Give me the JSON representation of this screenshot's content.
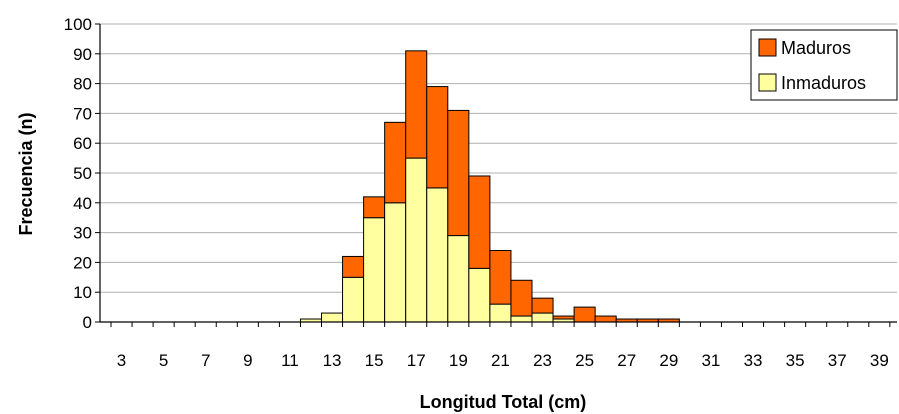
{
  "chart_data": {
    "type": "bar",
    "stacked": true,
    "xlabel": "Longitud Total (cm)",
    "ylabel": "Frecuencia (n)",
    "ylim": [
      0,
      100
    ],
    "yticks": [
      0,
      10,
      20,
      30,
      40,
      50,
      60,
      70,
      80,
      90,
      100
    ],
    "x": [
      3,
      4,
      5,
      6,
      7,
      8,
      9,
      10,
      11,
      12,
      13,
      14,
      15,
      16,
      17,
      18,
      19,
      20,
      21,
      22,
      23,
      24,
      25,
      26,
      27,
      28,
      29,
      30,
      31,
      32,
      33,
      34,
      35,
      36,
      37,
      38,
      39
    ],
    "xtick_labels": [
      "3",
      "5",
      "7",
      "9",
      "11",
      "13",
      "15",
      "17",
      "19",
      "21",
      "23",
      "25",
      "27",
      "29",
      "31",
      "33",
      "35",
      "37",
      "39"
    ],
    "series": [
      {
        "name": "Inmaduros",
        "color": "#ffffa0",
        "values": [
          0,
          0,
          0,
          0,
          0,
          0,
          0,
          0,
          0,
          1,
          3,
          15,
          35,
          40,
          55,
          45,
          29,
          18,
          6,
          2,
          3,
          1,
          0,
          0,
          0,
          0,
          0,
          0,
          0,
          0,
          0,
          0,
          0,
          0,
          0,
          0,
          0
        ]
      },
      {
        "name": "Maduros",
        "color": "#ff6600",
        "values": [
          0,
          0,
          0,
          0,
          0,
          0,
          0,
          0,
          0,
          0,
          0,
          7,
          7,
          27,
          36,
          34,
          42,
          31,
          18,
          12,
          5,
          1,
          5,
          2,
          1,
          1,
          1,
          0,
          0,
          0,
          0,
          0,
          0,
          0,
          0,
          0,
          0
        ]
      }
    ],
    "legend_position": "top-right",
    "grid": true
  }
}
